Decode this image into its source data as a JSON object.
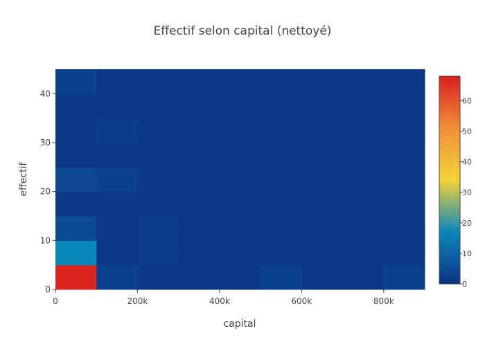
{
  "chart_data": {
    "type": "heatmap",
    "title": "Effectif selon capital (nettoyé)",
    "xlabel": "capital",
    "ylabel": "effectif",
    "x_bins": [
      0,
      100000,
      200000,
      300000,
      400000,
      500000,
      600000,
      700000,
      800000,
      900000
    ],
    "y_bins": [
      0,
      5,
      10,
      15,
      20,
      25,
      30,
      35,
      40,
      45
    ],
    "xlim": [
      0,
      900000
    ],
    "ylim": [
      0,
      45
    ],
    "x_ticks": [
      0,
      200000,
      400000,
      600000,
      800000
    ],
    "x_tick_labels": [
      "0",
      "200k",
      "400k",
      "600k",
      "800k"
    ],
    "y_ticks": [
      0,
      10,
      20,
      30,
      40
    ],
    "y_tick_labels": [
      "0",
      "10",
      "20",
      "30",
      "40"
    ],
    "z": [
      [
        67,
        3,
        1,
        1,
        1,
        3,
        1,
        1,
        3
      ],
      [
        17,
        1,
        2,
        1,
        1,
        1,
        1,
        1,
        1
      ],
      [
        5,
        1,
        2,
        1,
        1,
        1,
        1,
        1,
        1
      ],
      [
        1,
        1,
        1,
        1,
        1,
        1,
        1,
        1,
        1
      ],
      [
        4,
        3,
        1,
        1,
        1,
        1,
        1,
        1,
        1
      ],
      [
        1,
        1,
        1,
        1,
        1,
        1,
        1,
        1,
        1
      ],
      [
        1,
        2,
        1,
        1,
        1,
        1,
        1,
        1,
        1
      ],
      [
        1,
        1,
        1,
        1,
        1,
        1,
        1,
        1,
        1
      ],
      [
        3,
        1,
        1,
        1,
        1,
        1,
        1,
        1,
        1
      ]
    ],
    "zlim": [
      0,
      68
    ],
    "colorscale": [
      [
        0.0,
        "#0c3383"
      ],
      [
        0.25,
        "#0a88ba"
      ],
      [
        0.5,
        "#f2d338"
      ],
      [
        0.75,
        "#f28f38"
      ],
      [
        1.0,
        "#d91e1e"
      ]
    ],
    "colorbar": {
      "ticks": [
        0,
        10,
        20,
        30,
        40,
        50,
        60
      ],
      "tick_labels": [
        "0",
        "10",
        "20",
        "30",
        "40",
        "50",
        "60"
      ]
    },
    "grid": false
  }
}
